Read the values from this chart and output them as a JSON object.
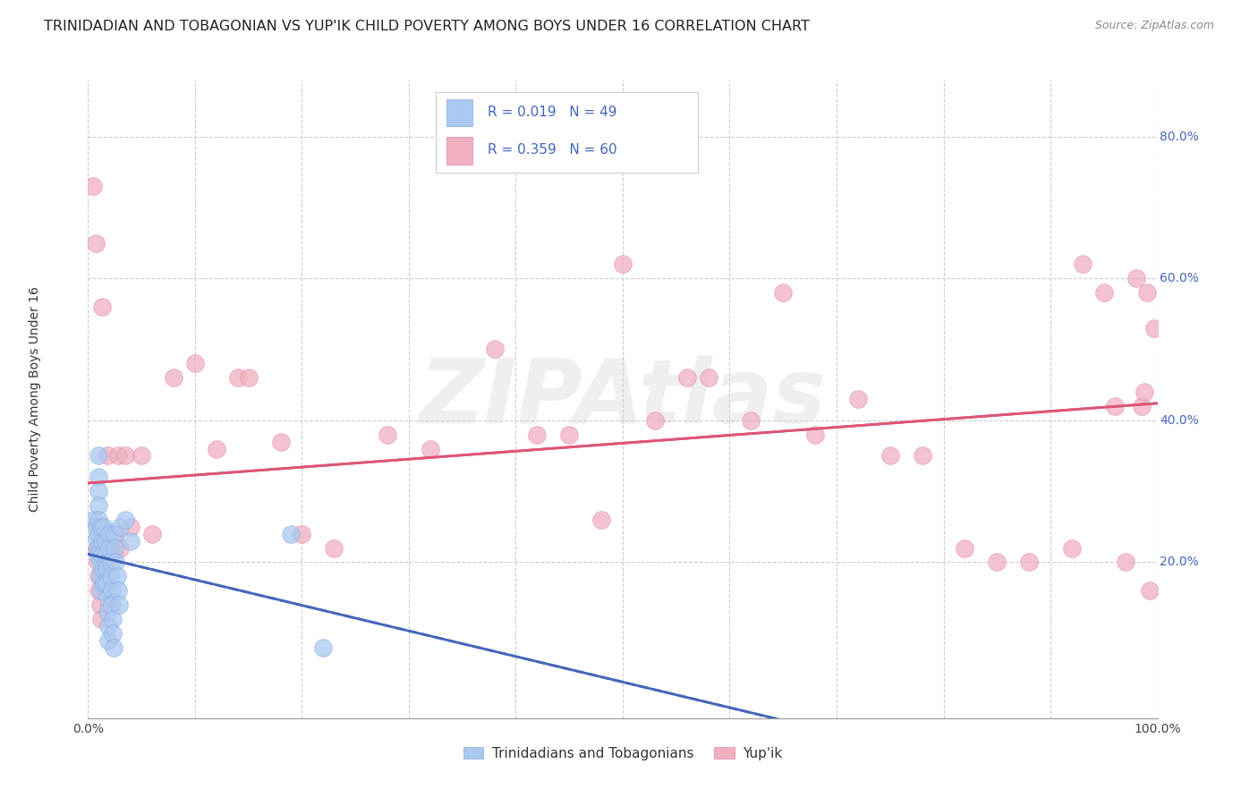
{
  "title": "TRINIDADIAN AND TOBAGONIAN VS YUP'IK CHILD POVERTY AMONG BOYS UNDER 16 CORRELATION CHART",
  "source": "Source: ZipAtlas.com",
  "ylabel": "Child Poverty Among Boys Under 16",
  "watermark": "ZIPAtlas",
  "legend_bottom": [
    "Trinidadians and Tobagonians",
    "Yup'ik"
  ],
  "xlim": [
    0,
    1.0
  ],
  "ylim": [
    -0.02,
    0.88
  ],
  "xticks": [
    0.0,
    0.1,
    0.2,
    0.3,
    0.4,
    0.5,
    0.6,
    0.7,
    0.8,
    0.9,
    1.0
  ],
  "ytick_positions": [
    0.2,
    0.4,
    0.6,
    0.8
  ],
  "ytick_labels": [
    "20.0%",
    "40.0%",
    "60.0%",
    "80.0%"
  ],
  "blue_fill_color": "#aac8f0",
  "blue_edge_color": "#88aadd",
  "pink_fill_color": "#f0b0c0",
  "pink_edge_color": "#dd88aa",
  "blue_line_color": "#4466bb",
  "pink_line_color": "#dd5577",
  "background_color": "#ffffff",
  "grid_color": "#cccccc",
  "title_fontsize": 11.5,
  "axis_label_fontsize": 10,
  "tick_fontsize": 10,
  "legend_text_color": "#4466bb",
  "blue_scatter_x": [
    0.005,
    0.008,
    0.008,
    0.009,
    0.009,
    0.01,
    0.01,
    0.01,
    0.01,
    0.01,
    0.01,
    0.011,
    0.011,
    0.011,
    0.012,
    0.012,
    0.013,
    0.013,
    0.014,
    0.015,
    0.015,
    0.016,
    0.016,
    0.017,
    0.017,
    0.018,
    0.018,
    0.019,
    0.019,
    0.02,
    0.02,
    0.021,
    0.021,
    0.022,
    0.022,
    0.023,
    0.023,
    0.024,
    0.025,
    0.025,
    0.026,
    0.027,
    0.028,
    0.029,
    0.03,
    0.035,
    0.04,
    0.19,
    0.22
  ],
  "blue_scatter_y": [
    0.26,
    0.25,
    0.235,
    0.22,
    0.21,
    0.35,
    0.32,
    0.3,
    0.28,
    0.26,
    0.24,
    0.22,
    0.2,
    0.18,
    0.16,
    0.25,
    0.23,
    0.21,
    0.19,
    0.17,
    0.25,
    0.23,
    0.21,
    0.19,
    0.17,
    0.15,
    0.13,
    0.11,
    0.09,
    0.24,
    0.22,
    0.2,
    0.18,
    0.16,
    0.14,
    0.12,
    0.1,
    0.08,
    0.24,
    0.22,
    0.2,
    0.18,
    0.16,
    0.14,
    0.25,
    0.26,
    0.23,
    0.24,
    0.08
  ],
  "pink_scatter_x": [
    0.005,
    0.007,
    0.008,
    0.009,
    0.01,
    0.01,
    0.011,
    0.012,
    0.013,
    0.014,
    0.015,
    0.016,
    0.018,
    0.02,
    0.022,
    0.025,
    0.028,
    0.03,
    0.035,
    0.04,
    0.05,
    0.06,
    0.08,
    0.1,
    0.12,
    0.14,
    0.15,
    0.18,
    0.2,
    0.23,
    0.28,
    0.32,
    0.38,
    0.42,
    0.45,
    0.48,
    0.5,
    0.53,
    0.56,
    0.58,
    0.62,
    0.65,
    0.68,
    0.72,
    0.75,
    0.78,
    0.82,
    0.85,
    0.88,
    0.92,
    0.93,
    0.95,
    0.96,
    0.97,
    0.98,
    0.985,
    0.988,
    0.99,
    0.993,
    0.997
  ],
  "pink_scatter_y": [
    0.73,
    0.65,
    0.22,
    0.2,
    0.18,
    0.16,
    0.14,
    0.12,
    0.56,
    0.2,
    0.18,
    0.16,
    0.35,
    0.14,
    0.22,
    0.24,
    0.35,
    0.22,
    0.35,
    0.25,
    0.35,
    0.24,
    0.46,
    0.48,
    0.36,
    0.46,
    0.46,
    0.37,
    0.24,
    0.22,
    0.38,
    0.36,
    0.5,
    0.38,
    0.38,
    0.26,
    0.62,
    0.4,
    0.46,
    0.46,
    0.4,
    0.58,
    0.38,
    0.43,
    0.35,
    0.35,
    0.22,
    0.2,
    0.2,
    0.22,
    0.62,
    0.58,
    0.42,
    0.2,
    0.6,
    0.42,
    0.44,
    0.58,
    0.16,
    0.53
  ]
}
